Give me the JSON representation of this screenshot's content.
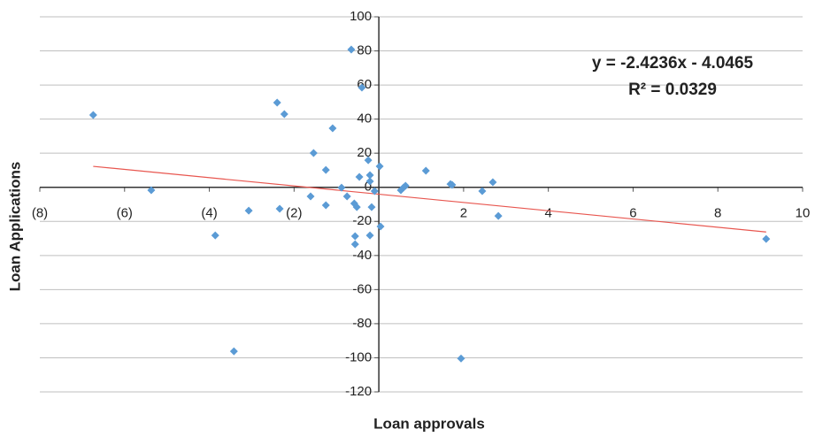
{
  "chart_data": {
    "type": "scatter",
    "x_label": "Loan approvals",
    "y_label": "Loan Applications",
    "annotations": [
      "y = -2.4236x - 4.0465",
      "R² = 0.0329"
    ],
    "series": [
      {
        "name": "Loan Applications",
        "color": "#5b9bd5",
        "x": [
          -6.74,
          -5.37,
          -3.86,
          -3.42,
          -3.07,
          -2.4,
          -2.34,
          -2.23,
          -1.61,
          -1.54,
          -1.25,
          -1.25,
          -1.09,
          -0.88,
          -0.75,
          -0.65,
          -0.58,
          -0.56,
          -0.56,
          -0.52,
          -0.46,
          -0.4,
          -0.25,
          -0.21,
          -0.21,
          -0.21,
          -0.17,
          -0.1,
          0.02,
          0.04,
          0.52,
          0.58,
          0.63,
          1.11,
          1.69,
          1.73,
          1.94,
          2.44,
          2.69,
          2.82,
          9.14
        ],
        "values": [
          42.4,
          -1.7,
          -28.2,
          -96.2,
          -13.7,
          49.7,
          -12.6,
          42.9,
          -5.3,
          20.1,
          10.2,
          -10.5,
          34.6,
          -0.2,
          -5.3,
          80.8,
          -9.5,
          -28.7,
          -33.4,
          -11.6,
          6.1,
          58.5,
          15.9,
          7.1,
          3.5,
          -28.2,
          -11.6,
          -2.2,
          12.3,
          -23.0,
          -1.7,
          -0.2,
          0.9,
          9.7,
          1.9,
          1.4,
          -100.4,
          -2.2,
          3.0,
          -16.8,
          -30.3
        ]
      }
    ],
    "trendline": {
      "slope": -2.4236,
      "intercept": -4.0465,
      "color": "#e8564f"
    },
    "xlim": [
      -8,
      10
    ],
    "xticks": [
      {
        "value": -8,
        "label": "(8)"
      },
      {
        "value": -6,
        "label": "(6)"
      },
      {
        "value": -4,
        "label": "(4)"
      },
      {
        "value": -2,
        "label": "(2)"
      },
      2,
      4,
      6,
      8,
      10
    ],
    "ylim": [
      -120,
      100
    ],
    "yticks": [
      -120,
      -100,
      -80,
      -60,
      -40,
      -20,
      0,
      20,
      40,
      60,
      80,
      100
    ],
    "grid": true
  }
}
